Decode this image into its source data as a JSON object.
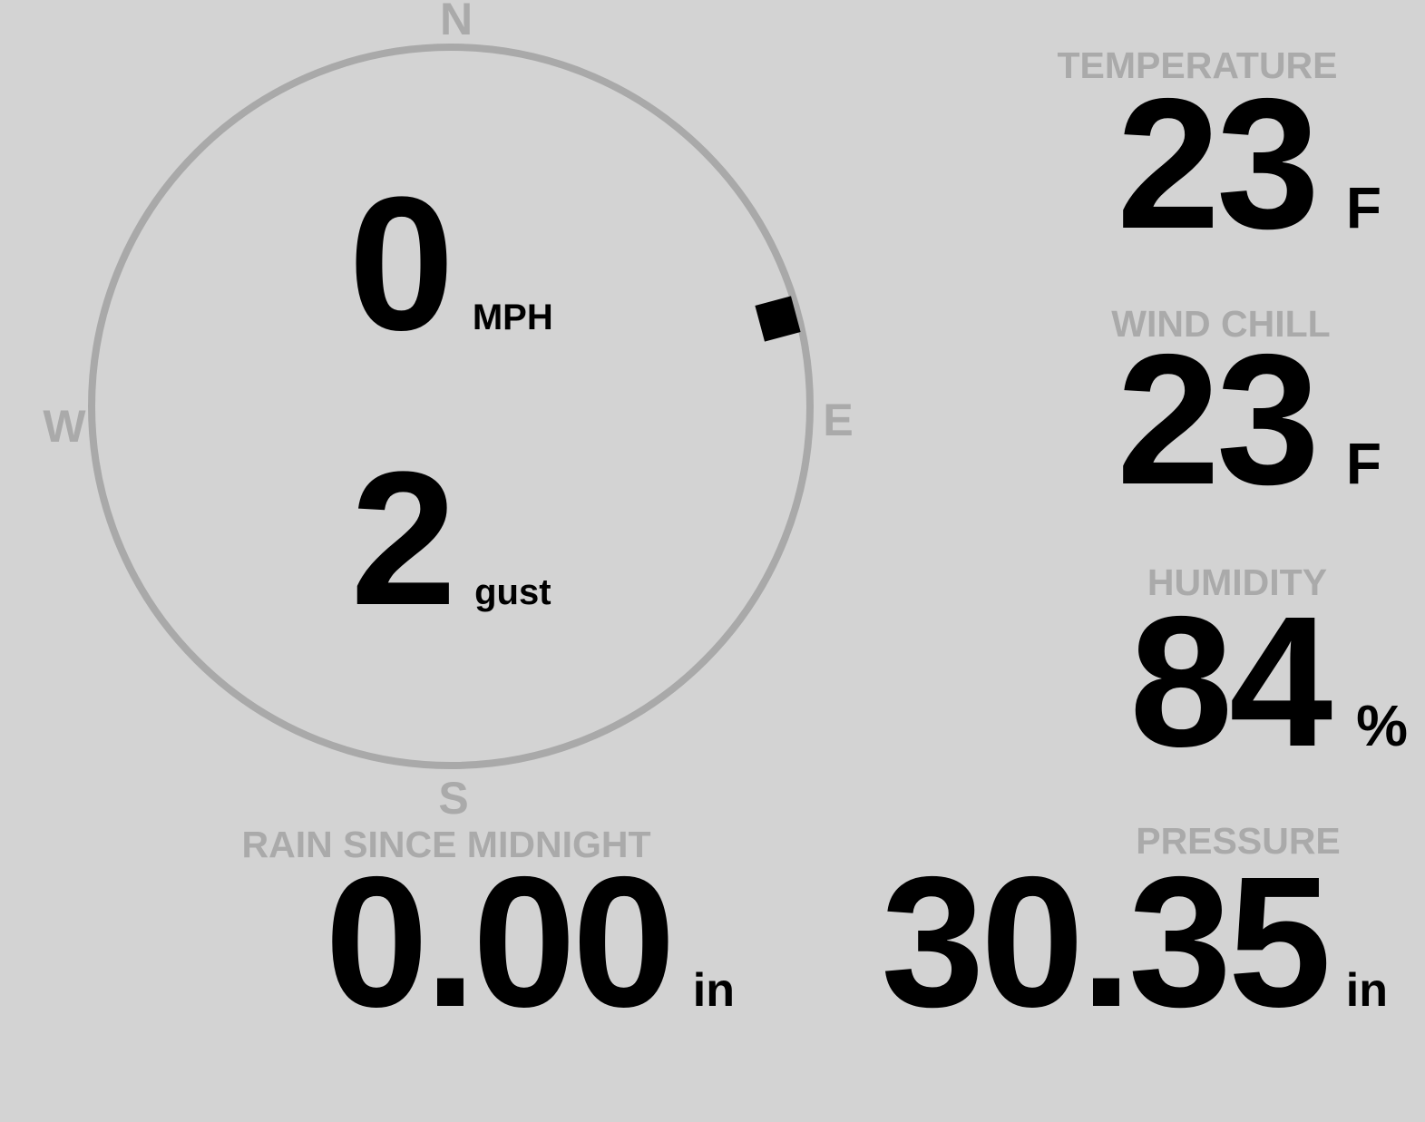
{
  "app": {
    "name": "weather-station-display"
  },
  "colors": {
    "background": "#d3d3d3",
    "muted_gray": "#aaaaaa",
    "ring_gray": "#a9a9a9",
    "ink": "#000000"
  },
  "wind": {
    "speed_value": "0",
    "speed_unit": "MPH",
    "gust_value": "2",
    "gust_unit": "gust",
    "direction_degrees": 75,
    "compass": {
      "north": "N",
      "east": "E",
      "south": "S",
      "west": "W"
    }
  },
  "metrics": [
    {
      "id": "temperature",
      "label": "TEMPERATURE",
      "value": "23",
      "unit": "F"
    },
    {
      "id": "wind_chill",
      "label": "WIND CHILL",
      "value": "23",
      "unit": "F"
    },
    {
      "id": "humidity",
      "label": "HUMIDITY",
      "value": "84",
      "unit": "%"
    },
    {
      "id": "pressure",
      "label": "PRESSURE",
      "value": "30.35",
      "unit": "in"
    }
  ],
  "rain": {
    "label": "RAIN SINCE MIDNIGHT",
    "value": "0.00",
    "unit": "in"
  }
}
